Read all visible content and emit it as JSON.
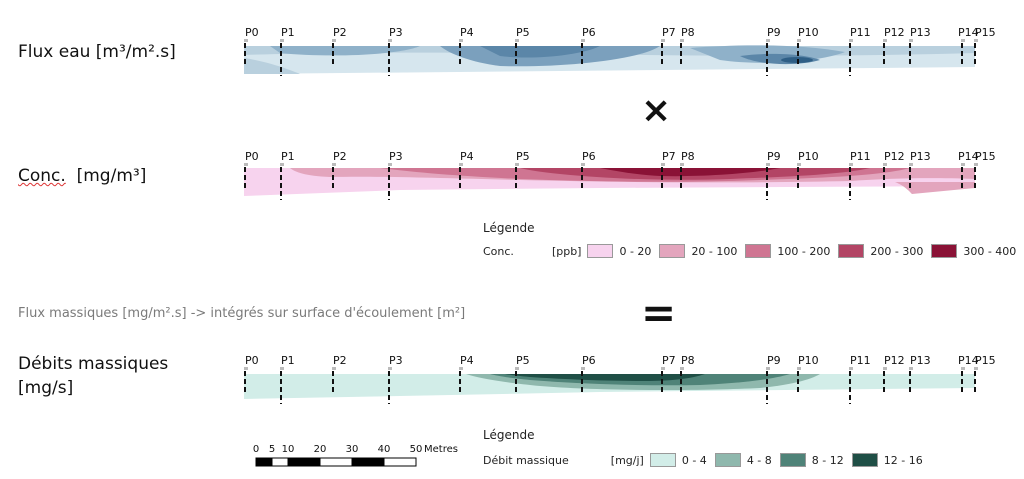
{
  "rows": [
    {
      "label": "Flux eau [m³/m².s]"
    },
    {
      "label_main": "Conc.",
      "label_unit": "[mg/m³]"
    },
    {
      "label_line1": "Débits massiques",
      "label_line2": "[mg/s]"
    }
  ],
  "profile_labels": [
    "P0",
    "P1",
    "P2",
    "P3",
    "P4",
    "P5",
    "P6",
    "P7",
    "P8",
    "P9",
    "P10",
    "P11",
    "P12",
    "P13",
    "P14",
    "P15"
  ],
  "operators": {
    "times": "×",
    "equals": "="
  },
  "flux_note": "Flux massiques [mg/m².s] -> intégrés sur surface d'écoulement [m²]",
  "legend_conc": {
    "title": "Légende",
    "name": "Conc.",
    "unit": "[ppb]",
    "classes": [
      {
        "label": "0 - 20",
        "color": "#f7d3ee"
      },
      {
        "label": "20 - 100",
        "color": "#e3a5bd"
      },
      {
        "label": "100 - 200",
        "color": "#cf7592"
      },
      {
        "label": "200 - 300",
        "color": "#b34565"
      },
      {
        "label": "300 - 400",
        "color": "#8a1236"
      }
    ]
  },
  "legend_debit": {
    "title": "Légende",
    "name": "Débit massique",
    "unit": "[mg/j]",
    "classes": [
      {
        "label": "0 - 4",
        "color": "#d2ede8"
      },
      {
        "label": "4 - 8",
        "color": "#8fb8ad"
      },
      {
        "label": "8 - 12",
        "color": "#4f8378"
      },
      {
        "label": "12 - 16",
        "color": "#1f4f46"
      }
    ]
  },
  "scale": {
    "ticks": [
      "0",
      "5",
      "10",
      "20",
      "30",
      "40",
      "50"
    ],
    "unit": "Metres"
  }
}
